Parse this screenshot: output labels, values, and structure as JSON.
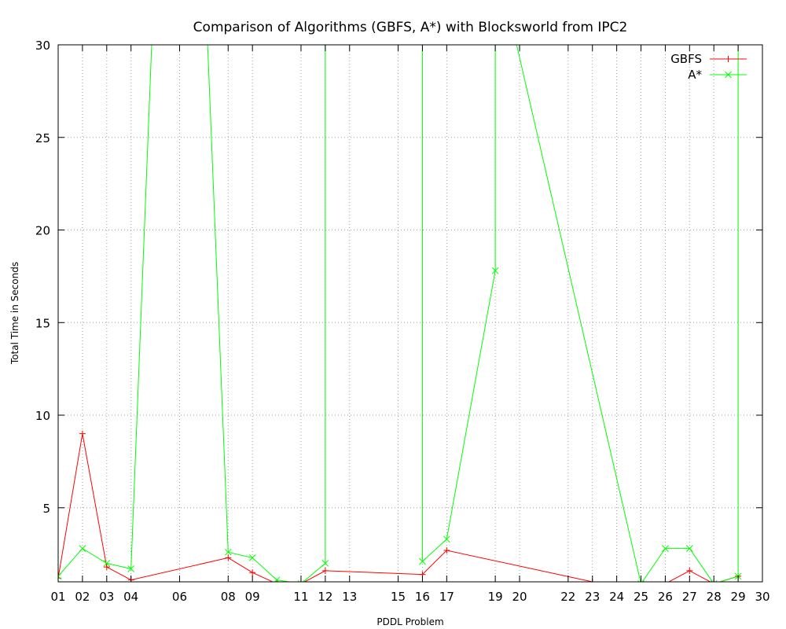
{
  "chart_data": {
    "type": "line",
    "title": "Comparison of Algorithms (GBFS, A*) with Blocksworld from IPC2",
    "xlabel": "PDDL Problem",
    "ylabel": "Total Time in Seconds",
    "xlim": [
      1,
      30
    ],
    "ylim": [
      1,
      30
    ],
    "x_ticks": [
      1,
      2,
      3,
      4,
      6,
      8,
      9,
      11,
      12,
      13,
      15,
      16,
      17,
      19,
      20,
      22,
      23,
      24,
      25,
      26,
      27,
      28,
      29,
      30
    ],
    "x_tick_labels": [
      "01",
      "02",
      "03",
      "04",
      "06",
      "08",
      "09",
      "11",
      "12",
      "13",
      "15",
      "16",
      "17",
      "19",
      "20",
      "22",
      "23",
      "24",
      "25",
      "26",
      "27",
      "28",
      "29",
      "30"
    ],
    "y_ticks": [
      5,
      10,
      15,
      20,
      25,
      30
    ],
    "y_tick_labels": [
      "5",
      "10",
      "15",
      "20",
      "25",
      "30"
    ],
    "grid": true,
    "legend_position": "top-right",
    "series": [
      {
        "name": "GBFS",
        "color": "#ff0000",
        "marker": "plus",
        "points": [
          [
            1,
            1.2
          ],
          [
            2,
            9.0
          ],
          [
            3,
            1.8
          ],
          [
            4,
            1.1
          ],
          [
            8,
            2.3
          ],
          [
            9,
            1.5
          ],
          [
            10,
            0.9
          ],
          [
            11,
            0.9
          ],
          [
            12,
            1.6
          ],
          [
            16,
            1.4
          ],
          [
            17,
            2.7
          ],
          [
            23,
            1.0
          ],
          [
            25,
            0.9
          ],
          [
            26,
            0.9
          ],
          [
            27,
            1.6
          ],
          [
            28,
            0.9
          ],
          [
            29,
            1.3
          ]
        ]
      },
      {
        "name": "A*",
        "color": "#00ff00",
        "marker": "cross",
        "points": [
          [
            1,
            1.3
          ],
          [
            2,
            2.8
          ],
          [
            3,
            2.0
          ],
          [
            4,
            1.7
          ],
          [
            5,
            35.0
          ],
          [
            7,
            35.0
          ],
          [
            8,
            2.6
          ],
          [
            9,
            2.3
          ],
          [
            10,
            1.1
          ],
          [
            11,
            0.9
          ],
          [
            12,
            2.0
          ],
          [
            12,
            35.0
          ],
          [
            16,
            35.0
          ],
          [
            16,
            2.1
          ],
          [
            17,
            3.3
          ],
          [
            19,
            17.8
          ],
          [
            19,
            35.0
          ],
          [
            25,
            0.9
          ],
          [
            26,
            2.8
          ],
          [
            27,
            2.8
          ],
          [
            28,
            0.9
          ],
          [
            29,
            1.3
          ],
          [
            29,
            35.0
          ]
        ]
      }
    ]
  }
}
